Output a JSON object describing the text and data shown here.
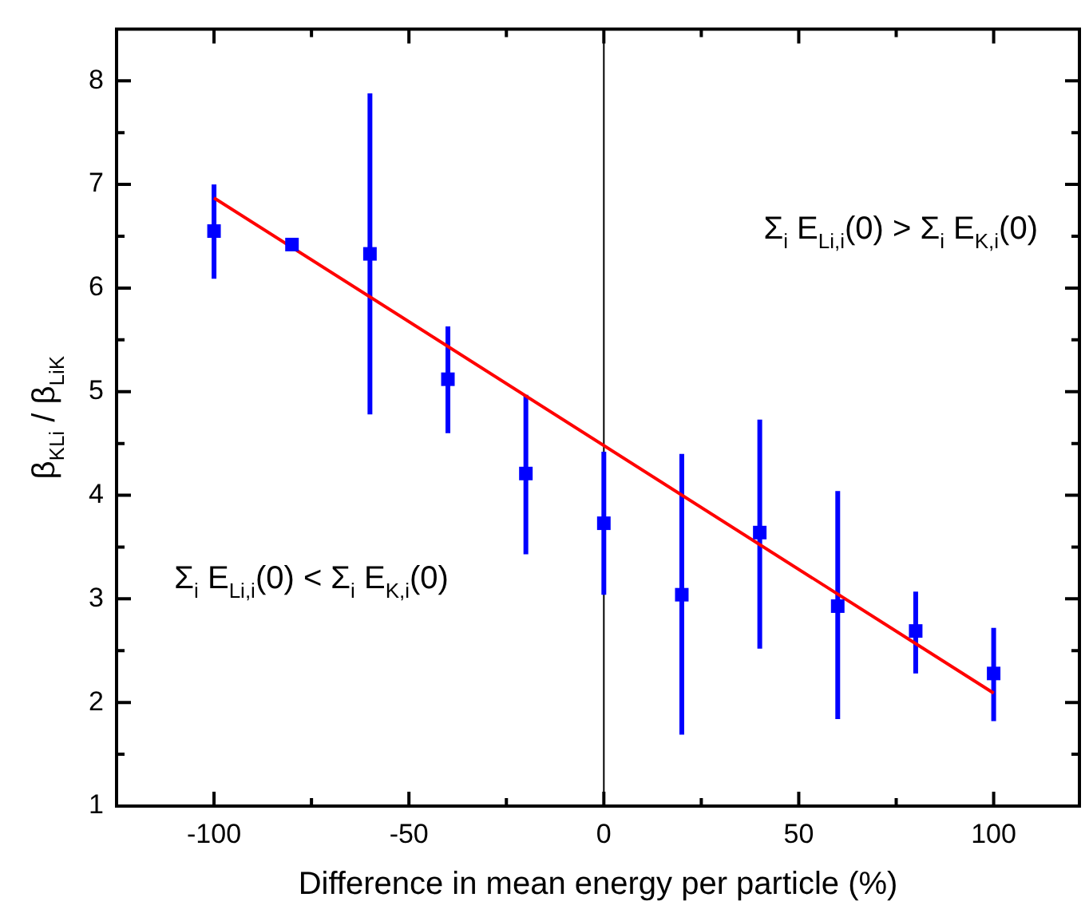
{
  "chart_data": {
    "type": "scatter",
    "xlabel": "Difference in mean energy per particle (%)",
    "ylabel": "β$_{KLi}$ / β$_{LiK}$",
    "x": [
      -100,
      -80,
      -60,
      -40,
      -20,
      0,
      20,
      40,
      60,
      80,
      100
    ],
    "series": [
      {
        "color": "#0000ff",
        "marker": "square",
        "values": [
          6.55,
          6.42,
          6.33,
          5.12,
          4.21,
          3.73,
          3.04,
          3.64,
          2.93,
          2.69,
          2.28
        ],
        "errors": [
          [
            6.09,
            7.0
          ],
          [
            6.37,
            6.47
          ],
          [
            4.78,
            7.88
          ],
          [
            4.6,
            5.63
          ],
          [
            3.43,
            4.97
          ],
          [
            3.04,
            4.42
          ],
          [
            1.69,
            4.4
          ],
          [
            2.52,
            4.73
          ],
          [
            1.84,
            4.04
          ],
          [
            2.28,
            3.07
          ],
          [
            1.82,
            2.72
          ]
        ]
      },
      {
        "type": "line",
        "color": "#ff0000",
        "marker": "none",
        "x": [
          -100,
          100
        ],
        "values": [
          6.87,
          2.09
        ]
      }
    ],
    "xlim": [
      -125,
      122
    ],
    "ylim": [
      1,
      8.5
    ],
    "xticks": [
      -100,
      {
        "value": -75,
        "label": null
      },
      -50,
      {
        "value": -25,
        "label": null
      },
      0,
      {
        "value": 25,
        "label": null
      },
      50,
      {
        "value": 75,
        "label": null
      },
      100
    ],
    "yticks": [
      1,
      {
        "value": 1.5,
        "label": null
      },
      2,
      {
        "value": 2.5,
        "label": null
      },
      3,
      {
        "value": 3.5,
        "label": null
      },
      4,
      {
        "value": 4.5,
        "label": null
      },
      5,
      {
        "value": 5.5,
        "label": null
      },
      6,
      {
        "value": 6.5,
        "label": null
      },
      7,
      {
        "value": 7.5,
        "label": null
      },
      8
    ],
    "ref_lines": [
      {
        "axis": "x",
        "value": 0,
        "color": "#000000"
      }
    ],
    "annotations": [
      "Σ$_{i}$ E$_{Li,i}$(0) > Σ$_{i}$ E$_{K,i}$(0)",
      "Σ$_{i}$ E$_{Li,i}$(0) < Σ$_{i}$ E$_{K,i}$(0)"
    ],
    "grid": false,
    "legend": false
  }
}
